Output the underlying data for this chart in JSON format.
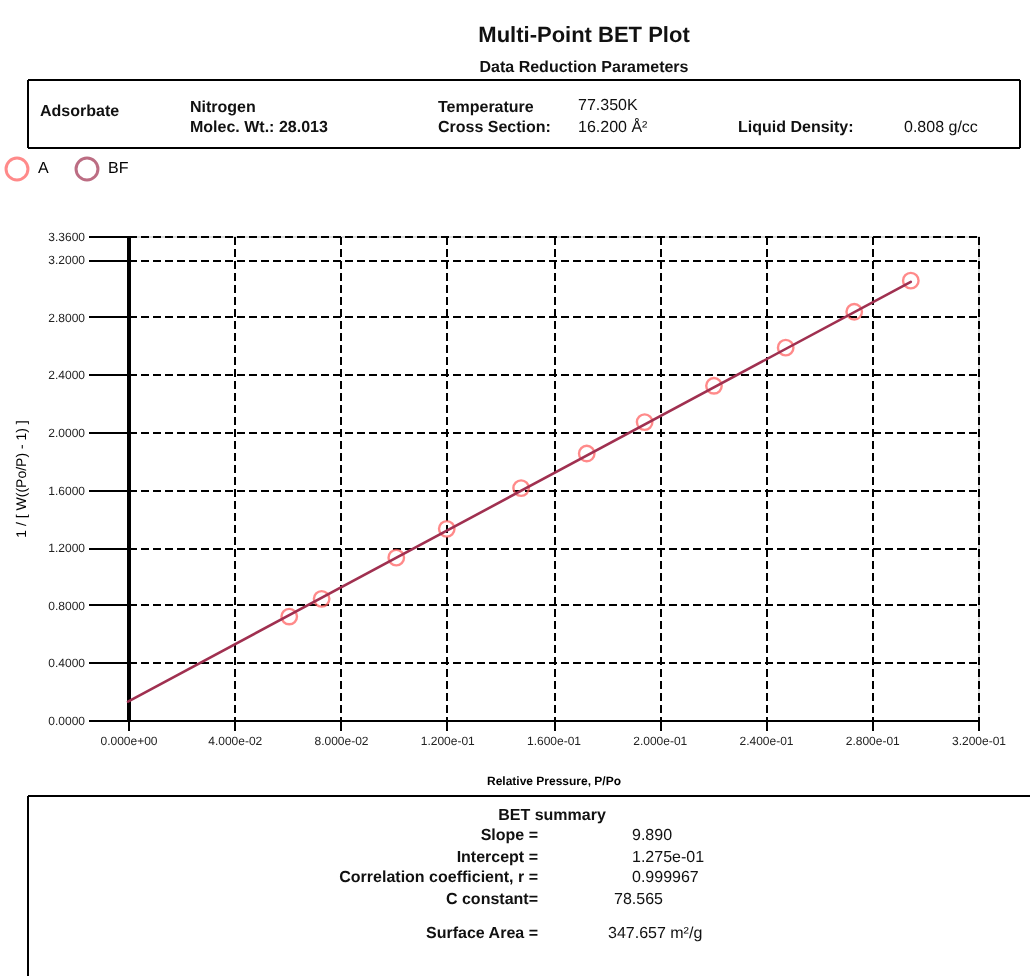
{
  "chart_data": {
    "type": "scatter",
    "title": "Multi-Point BET Plot",
    "xlabel": "Relative Pressure, P/Po",
    "ylabel": "1 / [ W((Po/P) - 1) ]",
    "xlim": [
      0,
      0.32
    ],
    "ylim": [
      0,
      3.36
    ],
    "xticks": [
      {
        "value": 0,
        "label": "0.000e+00"
      },
      {
        "value": 0.04,
        "label": "4.000e-02"
      },
      {
        "value": 0.08,
        "label": "8.000e-02"
      },
      {
        "value": 0.12,
        "label": "1.200e-01"
      },
      {
        "value": 0.16,
        "label": "1.600e-01"
      },
      {
        "value": 0.2,
        "label": "2.000e-01"
      },
      {
        "value": 0.24,
        "label": "2.400e-01"
      },
      {
        "value": 0.28,
        "label": "2.800e-01"
      },
      {
        "value": 0.32,
        "label": "3.200e-01"
      }
    ],
    "yticks": [
      {
        "value": 0,
        "label": "0.0000"
      },
      {
        "value": 0.4,
        "label": "0.4000"
      },
      {
        "value": 0.8,
        "label": "0.8000"
      },
      {
        "value": 1.2,
        "label": "1.2000"
      },
      {
        "value": 1.6,
        "label": "1.6000"
      },
      {
        "value": 2.0,
        "label": "2.0000"
      },
      {
        "value": 2.4,
        "label": "2.4000"
      },
      {
        "value": 2.8,
        "label": "2.8000"
      },
      {
        "value": 3.2,
        "label": "3.2000"
      },
      {
        "value": 3.36,
        "label": "3.3600"
      }
    ],
    "grid": true,
    "legend": "top left",
    "series": [
      {
        "name": "A",
        "color": "#ff5a5a",
        "marker": "circle",
        "x": [
          0.0607,
          0.0729,
          0.101,
          0.12,
          0.148,
          0.1727,
          0.1945,
          0.2206,
          0.2476,
          0.2734,
          0.2947
        ],
        "values": [
          0.718,
          0.841,
          1.127,
          1.327,
          1.61,
          1.85,
          2.068,
          2.32,
          2.585,
          2.834,
          3.05
        ]
      },
      {
        "name": "BF",
        "type": "line",
        "color": "#a03050",
        "marker": "none",
        "line_style": "solid",
        "x": [
          0,
          0.2947
        ],
        "values": [
          0.1275,
          3.042
        ]
      }
    ],
    "annotations": [
      "Data Reduction Parameters",
      "Adsorbate",
      "Nitrogen",
      "Molec. Wt.: 28.013",
      "Temperature",
      "77.350K",
      "Cross Section:",
      "16.200 Å²",
      "Liquid Density:",
      "0.808 g/cc",
      "BET summary",
      "Slope =",
      "9.890",
      "Intercept =",
      "1.275e-01",
      "Correlation coefficient, r =",
      "0.999967",
      "C constant=",
      "78.565",
      "Surface Area =",
      "347.657 m²/g"
    ]
  }
}
